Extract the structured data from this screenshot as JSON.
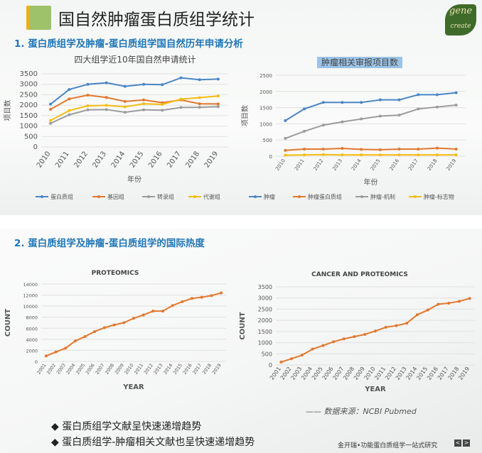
{
  "header": {
    "title": "国自然肿瘤蛋白质组学统计",
    "logo_text": "gene create",
    "section1": "1. 蛋白质组学及肿瘤-蛋白质组学国自然历年申请分析",
    "section2": "2. 蛋白质组学及肿瘤-蛋白质组学的国际热度"
  },
  "notes": {
    "source": "—— 数据来源：NCBI Pubmed",
    "bullet_icon": "diamond-icon",
    "bullets": [
      "蛋白质组学文献呈快速递增趋势",
      "蛋白质组学-肿瘤相关文献也呈快速递增趋势"
    ],
    "footer": "金开瑞•功能蛋白质组学一站式研究",
    "prev": "<",
    "next": ">"
  },
  "chart_data": [
    {
      "type": "line",
      "title": "四大组学近10年国自然申请统计",
      "xlabel": "年份",
      "ylabel": "项目数",
      "categories": [
        "2010",
        "2011",
        "2012",
        "2013",
        "2014",
        "2015",
        "2016",
        "2017",
        "2018",
        "2019"
      ],
      "ylim": [
        0,
        3500
      ],
      "yticks": [
        0,
        500,
        1000,
        1500,
        2000,
        2500,
        3000,
        3500
      ],
      "grid": true,
      "legend": "bottom",
      "series": [
        {
          "name": "蛋白质组",
          "color": "#4a86c5",
          "values": [
            2050,
            2750,
            3000,
            3070,
            2900,
            3000,
            2980,
            3310,
            3220,
            3250
          ]
        },
        {
          "name": "基因组",
          "color": "#e2782f",
          "values": [
            1800,
            2300,
            2480,
            2370,
            2180,
            2250,
            2120,
            2250,
            2070,
            2060
          ]
        },
        {
          "name": "转录组",
          "color": "#9b9b9b",
          "values": [
            1130,
            1540,
            1780,
            1790,
            1660,
            1780,
            1760,
            1890,
            1900,
            1930
          ]
        },
        {
          "name": "代谢组",
          "color": "#f5bd12",
          "values": [
            1270,
            1740,
            1970,
            1990,
            1920,
            2070,
            2040,
            2290,
            2360,
            2440
          ]
        }
      ]
    },
    {
      "type": "line",
      "title": "肿瘤相关审报项目数",
      "xlabel": "年份",
      "ylabel": "项目数",
      "categories": [
        "2010",
        "2011",
        "2012",
        "2013",
        "2014",
        "2015",
        "2016",
        "2017",
        "2018",
        "2019"
      ],
      "ylim": [
        0,
        2500
      ],
      "yticks": [
        0,
        500,
        1000,
        1500,
        2000,
        2500
      ],
      "grid": true,
      "legend": "bottom",
      "series": [
        {
          "name": "肿瘤",
          "color": "#4a86c5",
          "values": [
            1100,
            1460,
            1660,
            1660,
            1660,
            1740,
            1740,
            1900,
            1900,
            1960
          ]
        },
        {
          "name": "肿瘤蛋白质组",
          "color": "#e2782f",
          "values": [
            180,
            220,
            220,
            240,
            210,
            200,
            220,
            220,
            250,
            220
          ]
        },
        {
          "name": "肿瘤-机制",
          "color": "#9b9b9b",
          "values": [
            550,
            770,
            960,
            1060,
            1150,
            1240,
            1270,
            1460,
            1520,
            1580
          ]
        },
        {
          "name": "肿瘤-标志物",
          "color": "#f5bd12",
          "values": [
            30,
            40,
            50,
            40,
            40,
            40,
            40,
            40,
            40,
            40
          ]
        }
      ]
    },
    {
      "type": "line",
      "title": "PROTEOMICS",
      "xlabel": "YEAR",
      "ylabel": "COUNT",
      "categories": [
        "2001",
        "2002",
        "2003",
        "2004",
        "2005",
        "2006",
        "2007",
        "2008",
        "2009",
        "2010",
        "2011",
        "2012",
        "2013",
        "2014",
        "2015",
        "2016",
        "2017",
        "2018",
        "2019"
      ],
      "ylim": [
        0,
        14000
      ],
      "yticks": [
        0,
        2000,
        4000,
        6000,
        8000,
        10000,
        12000,
        14000
      ],
      "grid": true,
      "legend": "none",
      "series": [
        {
          "name": "PROTEOMICS",
          "color": "#e2782f",
          "values": [
            1000,
            1700,
            2400,
            3700,
            4500,
            5400,
            6100,
            6600,
            7000,
            7800,
            8400,
            9100,
            9100,
            10100,
            10800,
            11400,
            11600,
            11900,
            12400
          ]
        }
      ]
    },
    {
      "type": "line",
      "title": "CANCER AND PROTEOMICS",
      "xlabel": "YEAR",
      "ylabel": "COUNT",
      "categories": [
        "2001",
        "2002",
        "2003",
        "2004",
        "2005",
        "2006",
        "2007",
        "2008",
        "2009",
        "2010",
        "2011",
        "2012",
        "2013",
        "2014",
        "2015",
        "2016",
        "2017",
        "2018",
        "2019"
      ],
      "ylim": [
        0,
        3500
      ],
      "yticks": [
        0,
        500,
        1000,
        1500,
        2000,
        2500,
        3000,
        3500
      ],
      "grid": true,
      "legend": "none",
      "series": [
        {
          "name": "CANCER AND PROTEOMICS",
          "color": "#e2782f",
          "values": [
            130,
            280,
            440,
            710,
            870,
            1040,
            1170,
            1270,
            1370,
            1520,
            1690,
            1760,
            1870,
            2250,
            2460,
            2720,
            2770,
            2850,
            2980
          ]
        }
      ]
    }
  ]
}
